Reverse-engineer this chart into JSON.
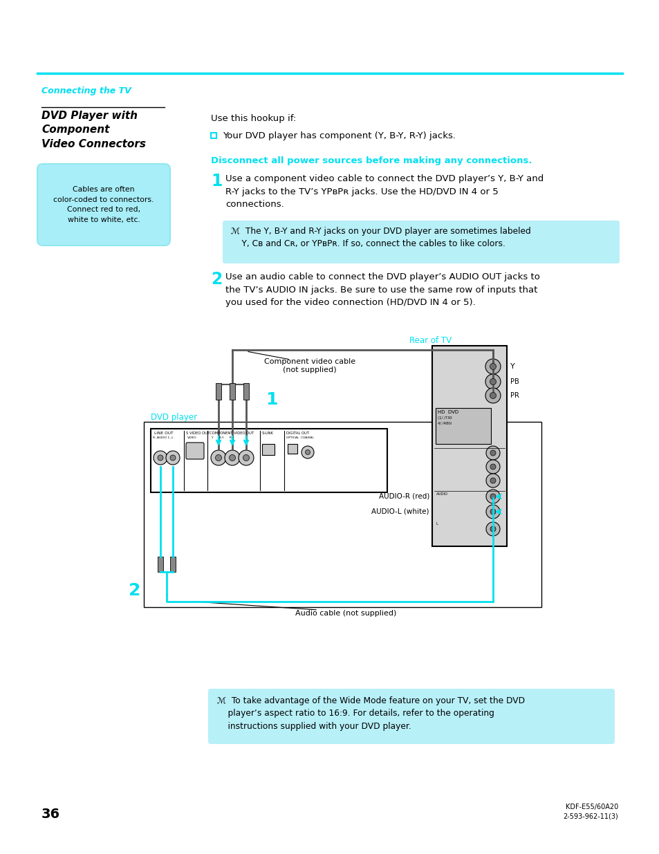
{
  "page_bg": "#ffffff",
  "cyan": "#00e0f0",
  "black": "#000000",
  "note_bg": "#b8f0f8",
  "sidebar_bg": "#a8eef8",
  "header_text": "Connecting the TV",
  "title": "DVD Player with\nComponent\nVideo Connectors",
  "sidebar_text": "Cables are often\ncolor-coded to connectors.\nConnect red to red,\nwhite to white, etc.",
  "hookup_intro": "Use this hookup if:",
  "bullet": "Your DVD player has component (Y, B-Y, R-Y) jacks.",
  "disconnect": "Disconnect all power sources before making any connections.",
  "step1": "Use a component video cable to connect the DVD player’s Y, B-Y and\nR-Y jacks to the TV’s YPʙPʀ jacks. Use the HD/DVD IN 4 or 5\nconnections.",
  "note1": "ℳ  The Y, B-Y and R-Y jacks on your DVD player are sometimes labeled\n    Y, Cʙ and Cʀ, or YPʙPʀ. If so, connect the cables to like colors.",
  "step2": "Use an audio cable to connect the DVD player’s AUDIO OUT jacks to\nthe TV’s AUDIO IN jacks. Be sure to use the same row of inputs that\nyou used for the video connection (HD/DVD IN 4 or 5).",
  "label_rear": "Rear of TV",
  "label_dvd": "DVD player",
  "label_comp_cable": "Component video cable\n(not supplied)",
  "label_audio_cable": "Audio cable (not supplied)",
  "label_audio_r": "AUDIO-R (red)",
  "label_audio_l": "AUDIO-L (white)",
  "label_y": "Y",
  "label_pb": "PB",
  "label_pr": "PR",
  "note2": "ℳ  To take advantage of the Wide Mode feature on your TV, set the DVD\n    player’s aspect ratio to 16:9. For details, refer to the operating\n    instructions supplied with your DVD player.",
  "page_num": "36",
  "model": "KDF-E55/60A20\n2-593-962-11(3)"
}
